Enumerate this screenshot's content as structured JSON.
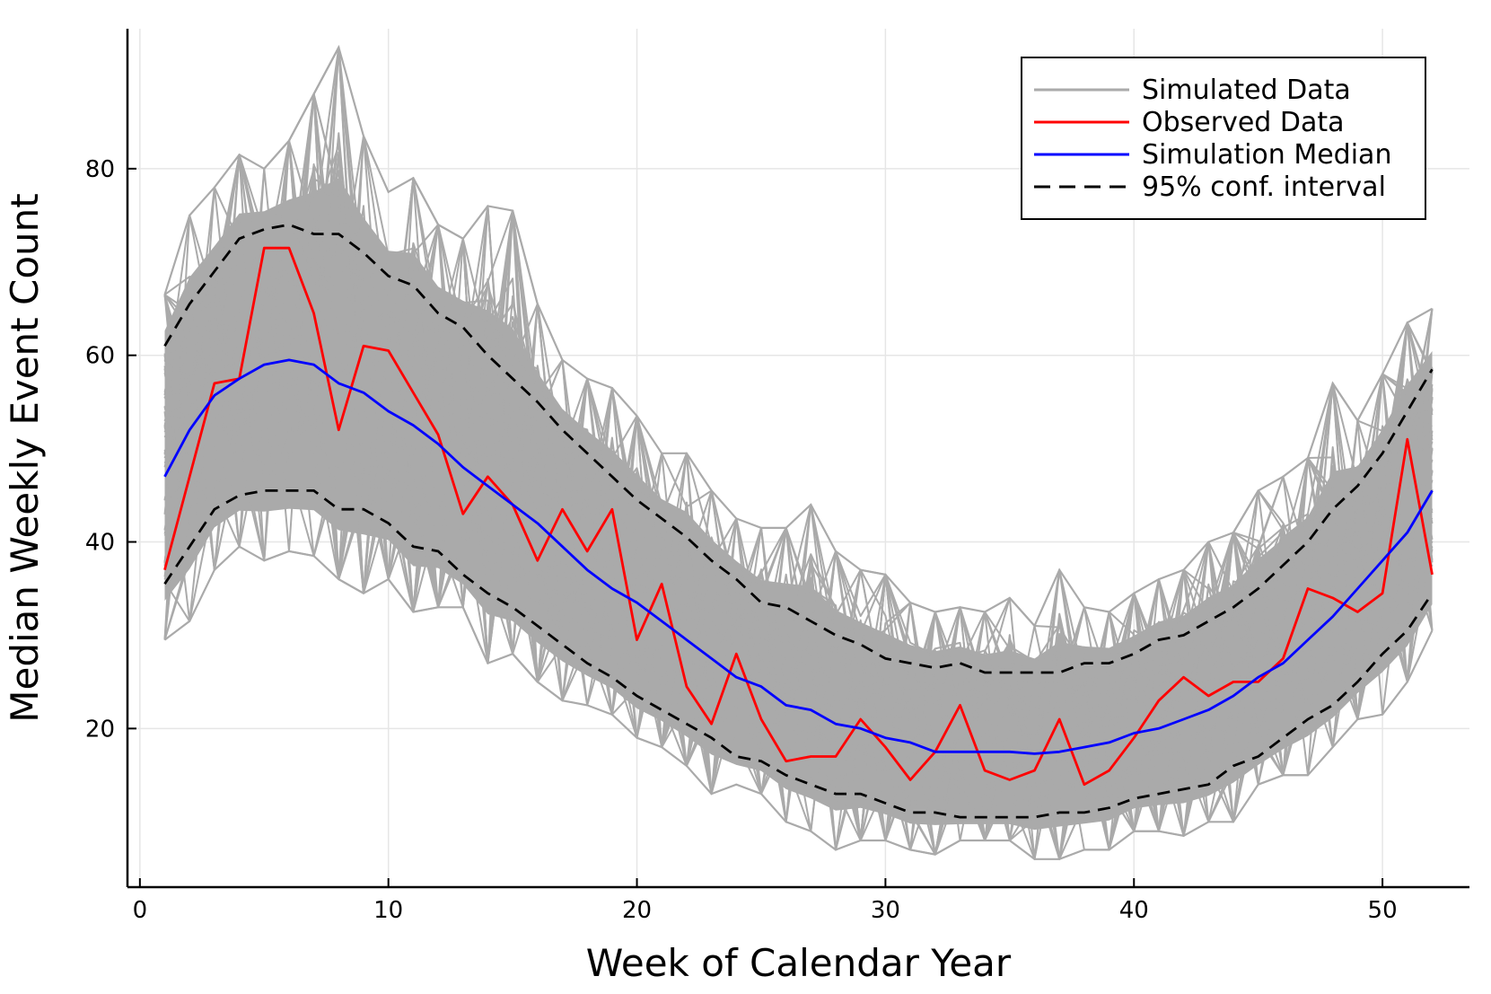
{
  "chart_data": {
    "type": "line",
    "title": "",
    "xlabel": "Week of Calendar Year",
    "ylabel": "Median Weekly Event Count",
    "xlim": [
      -0.5,
      53.5
    ],
    "ylim": [
      3,
      95
    ],
    "xticks": [
      0,
      10,
      20,
      30,
      40,
      50
    ],
    "yticks": [
      20,
      40,
      60,
      80
    ],
    "xtick_labels": [
      "0",
      "10",
      "20",
      "30",
      "40",
      "50"
    ],
    "ytick_labels": [
      "20",
      "40",
      "60",
      "80"
    ],
    "grid": true,
    "legend_position": "top-right",
    "x": [
      1,
      2,
      3,
      4,
      5,
      6,
      7,
      8,
      9,
      10,
      11,
      12,
      13,
      14,
      15,
      16,
      17,
      18,
      19,
      20,
      21,
      22,
      23,
      24,
      25,
      26,
      27,
      28,
      29,
      30,
      31,
      32,
      33,
      34,
      35,
      36,
      37,
      38,
      39,
      40,
      41,
      42,
      43,
      44,
      45,
      46,
      47,
      48,
      49,
      50,
      51,
      52
    ],
    "simulated_band": {
      "name": "Simulated Data",
      "color": "#aaaaaa",
      "min": [
        29.5,
        31.5,
        37,
        39.5,
        38,
        39,
        38.5,
        36,
        34.5,
        36,
        32.5,
        33,
        33,
        27,
        28,
        25,
        23,
        22.5,
        21.5,
        19,
        18,
        16,
        13,
        14,
        13,
        10,
        9,
        7,
        8,
        8,
        7,
        6.5,
        8,
        8,
        8,
        6,
        6,
        7,
        7,
        9,
        9,
        8.5,
        10,
        10,
        14,
        15,
        15,
        18,
        21,
        21.5,
        25,
        30.5
      ],
      "max": [
        66.5,
        75,
        78,
        81.5,
        80,
        83,
        88,
        93,
        83.5,
        77.5,
        79,
        74,
        72.5,
        76,
        75.5,
        65.5,
        59.5,
        57.5,
        56.5,
        53.5,
        49.5,
        49.5,
        45.5,
        42.5,
        41.5,
        41.5,
        44,
        39,
        37,
        36.5,
        33.5,
        32.5,
        33,
        32.5,
        34,
        31,
        37,
        33,
        32.5,
        34.5,
        36,
        37,
        40,
        41,
        45.5,
        47,
        49,
        57,
        53,
        58,
        63.5,
        65
      ],
      "series_count": 1000
    },
    "series": [
      {
        "name": "Observed Data",
        "color": "#ff0000",
        "values": [
          37,
          47,
          57,
          57.5,
          71.5,
          71.5,
          64.5,
          52,
          61,
          60.5,
          56,
          51.5,
          43,
          47,
          44,
          38,
          43.5,
          39,
          43.5,
          29.5,
          35.5,
          24.5,
          20.5,
          28,
          21,
          16.5,
          17,
          17,
          21,
          18,
          14.5,
          17.5,
          22.5,
          15.5,
          14.5,
          15.5,
          21,
          14,
          15.5,
          19,
          23,
          25.5,
          23.5,
          25,
          25,
          27.5,
          35,
          34,
          32.5,
          34.5,
          51,
          36.5
        ]
      },
      {
        "name": "Simulation Median",
        "color": "#0000ff",
        "values": [
          47,
          52,
          55.7,
          57.5,
          59,
          59.5,
          59,
          57,
          56,
          54,
          52.5,
          50.5,
          48,
          46,
          44,
          42,
          39.5,
          37,
          35,
          33.5,
          31.5,
          29.5,
          27.5,
          25.5,
          24.5,
          22.5,
          22,
          20.5,
          20,
          19,
          18.5,
          17.5,
          17.5,
          17.5,
          17.5,
          17.3,
          17.5,
          18,
          18.5,
          19.5,
          20,
          21,
          22,
          23.5,
          25.5,
          27,
          29.5,
          32,
          35,
          38,
          41,
          45.5
        ]
      },
      {
        "name": "95% conf. interval",
        "color": "#000000",
        "dash": true,
        "upper": [
          61,
          65.5,
          69,
          72.5,
          73.5,
          74,
          73,
          73,
          71,
          68.5,
          67.5,
          64.5,
          63,
          60,
          57.5,
          55,
          52,
          49.5,
          47,
          44.5,
          42.5,
          40.5,
          38,
          36,
          33.5,
          33,
          31.5,
          30,
          29,
          27.5,
          27,
          26.5,
          27,
          26,
          26,
          26,
          26,
          27,
          27,
          28,
          29.5,
          30,
          31.5,
          33,
          35,
          37.5,
          40,
          43.5,
          46,
          49.5,
          54,
          58.5
        ],
        "lower": [
          35.5,
          39.5,
          43.5,
          45,
          45.5,
          45.5,
          45.5,
          43.5,
          43.5,
          42,
          39.5,
          39,
          36.5,
          34.5,
          33,
          31,
          29,
          27,
          25.5,
          23.5,
          22,
          20.5,
          19,
          17,
          16.5,
          15,
          14,
          13,
          13,
          12,
          11,
          11,
          10.5,
          10.5,
          10.5,
          10.5,
          11,
          11,
          11.5,
          12.5,
          13,
          13.5,
          14,
          16,
          17,
          19,
          21,
          22.5,
          25,
          28,
          30.5,
          34.5
        ]
      }
    ],
    "legend": [
      "Simulated Data",
      "Observed Data",
      "Simulation Median",
      "95% conf. interval"
    ]
  }
}
